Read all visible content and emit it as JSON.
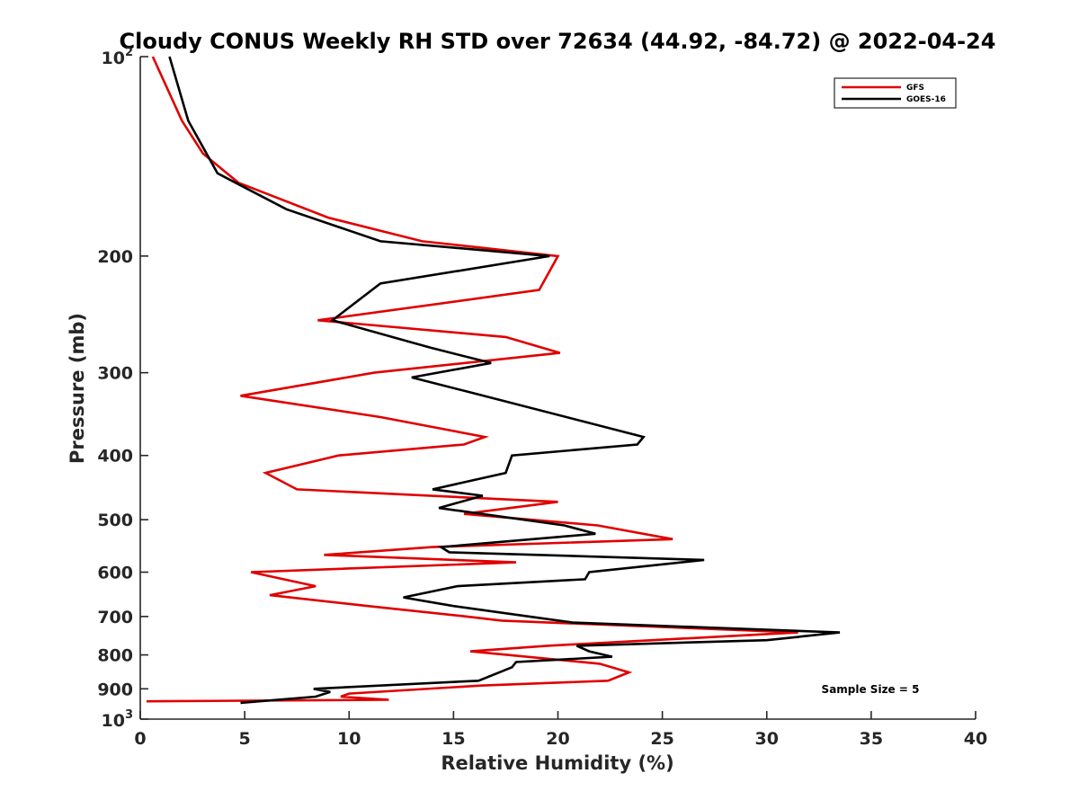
{
  "chart_data": {
    "type": "line",
    "title": "Cloudy CONUS Weekly RH STD over 72634 (44.92, -84.72) @ 2022-04-24",
    "xlabel": "Relative Humidity (%)",
    "ylabel": "Pressure (mb)",
    "xlim": [
      0,
      40
    ],
    "ylim": [
      100,
      1000
    ],
    "y_scale": "log",
    "y_reversed": true,
    "x_ticks": [
      0,
      5,
      10,
      15,
      20,
      25,
      30,
      35,
      40
    ],
    "x_tick_labels": [
      "0",
      "5",
      "10",
      "15",
      "20",
      "25",
      "30",
      "35",
      "40"
    ],
    "y_ticks": [
      200,
      300,
      400,
      500,
      600,
      700,
      800,
      900
    ],
    "y_tick_labels": [
      "200",
      "300",
      "400",
      "500",
      "600",
      "700",
      "800",
      "900"
    ],
    "y_end_ticks": [
      {
        "value": 100,
        "base": "10",
        "exp": "2"
      },
      {
        "value": 1000,
        "base": "10",
        "exp": "3"
      }
    ],
    "grid": false,
    "legend_position": "top-right",
    "annotation": "Sample Size = 5",
    "series": [
      {
        "name": "GFS",
        "color": "#e00000",
        "points": [
          [
            0.6,
            100
          ],
          [
            2.0,
            125
          ],
          [
            3.0,
            140
          ],
          [
            4.7,
            155
          ],
          [
            9.0,
            175
          ],
          [
            13.5,
            190
          ],
          [
            20.0,
            200
          ],
          [
            19.1,
            225
          ],
          [
            8.5,
            250
          ],
          [
            17.5,
            265
          ],
          [
            20.1,
            280
          ],
          [
            11.2,
            300
          ],
          [
            4.8,
            325
          ],
          [
            11.5,
            350
          ],
          [
            16.5,
            375
          ],
          [
            15.5,
            385
          ],
          [
            9.5,
            400
          ],
          [
            6.0,
            425
          ],
          [
            7.5,
            450
          ],
          [
            20.0,
            470
          ],
          [
            15.5,
            490
          ],
          [
            21.9,
            510
          ],
          [
            25.5,
            535
          ],
          [
            14.0,
            550
          ],
          [
            8.8,
            565
          ],
          [
            18.0,
            580
          ],
          [
            5.3,
            600
          ],
          [
            8.4,
            630
          ],
          [
            6.2,
            650
          ],
          [
            10.9,
            675
          ],
          [
            15.6,
            700
          ],
          [
            17.3,
            710
          ],
          [
            31.5,
            740
          ],
          [
            19.5,
            775
          ],
          [
            15.8,
            790
          ],
          [
            22.0,
            825
          ],
          [
            23.4,
            850
          ],
          [
            22.4,
            875
          ],
          [
            16.3,
            890
          ],
          [
            10.0,
            915
          ],
          [
            9.6,
            925
          ],
          [
            11.9,
            935
          ],
          [
            0.3,
            940
          ]
        ]
      },
      {
        "name": "GOES-16",
        "color": "#000000",
        "points": [
          [
            1.4,
            100
          ],
          [
            2.3,
            125
          ],
          [
            3.7,
            150
          ],
          [
            7.0,
            170
          ],
          [
            11.5,
            190
          ],
          [
            19.6,
            200
          ],
          [
            11.5,
            220
          ],
          [
            9.2,
            250
          ],
          [
            13.9,
            275
          ],
          [
            16.8,
            290
          ],
          [
            13.0,
            305
          ],
          [
            15.6,
            320
          ],
          [
            24.1,
            375
          ],
          [
            23.8,
            385
          ],
          [
            17.8,
            400
          ],
          [
            17.5,
            425
          ],
          [
            14.0,
            450
          ],
          [
            16.4,
            460
          ],
          [
            14.3,
            480
          ],
          [
            20.3,
            510
          ],
          [
            21.8,
            525
          ],
          [
            14.4,
            550
          ],
          [
            14.8,
            560
          ],
          [
            27.0,
            575
          ],
          [
            21.5,
            600
          ],
          [
            21.3,
            615
          ],
          [
            15.2,
            630
          ],
          [
            12.6,
            655
          ],
          [
            15.0,
            675
          ],
          [
            18.6,
            700
          ],
          [
            20.7,
            715
          ],
          [
            33.5,
            740
          ],
          [
            30.0,
            760
          ],
          [
            20.9,
            775
          ],
          [
            21.5,
            790
          ],
          [
            22.6,
            805
          ],
          [
            18.0,
            820
          ],
          [
            17.8,
            835
          ],
          [
            16.2,
            875
          ],
          [
            8.3,
            900
          ],
          [
            9.1,
            910
          ],
          [
            8.4,
            925
          ],
          [
            4.8,
            945
          ]
        ]
      }
    ]
  }
}
